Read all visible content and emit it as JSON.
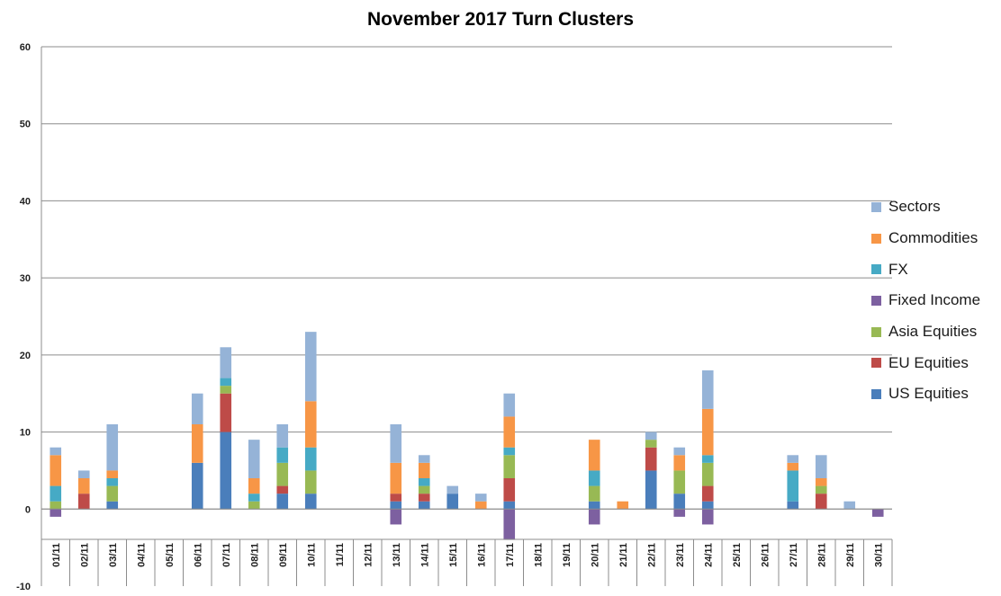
{
  "chart_data": {
    "type": "bar",
    "stacked": true,
    "title": "November 2017 Turn Clusters",
    "xlabel": "",
    "ylabel": "",
    "ylim": [
      -10,
      60
    ],
    "yticks": [
      -10,
      0,
      10,
      20,
      30,
      40,
      50,
      60
    ],
    "grid": true,
    "legend_position": "right",
    "categories": [
      "01/11",
      "02/11",
      "03/11",
      "04/11",
      "05/11",
      "06/11",
      "07/11",
      "08/11",
      "09/11",
      "10/11",
      "11/11",
      "12/11",
      "13/11",
      "14/11",
      "15/11",
      "16/11",
      "17/11",
      "18/11",
      "19/11",
      "20/11",
      "21/11",
      "22/11",
      "23/11",
      "24/11",
      "25/11",
      "26/11",
      "27/11",
      "28/11",
      "29/11",
      "30/11"
    ],
    "series": [
      {
        "name": "US Equities",
        "color": "#4a7ebb",
        "values": [
          0,
          0,
          1,
          0,
          0,
          6,
          10,
          0,
          2,
          2,
          0,
          0,
          1,
          1,
          2,
          0,
          1,
          0,
          0,
          1,
          0,
          5,
          2,
          1,
          0,
          0,
          1,
          0,
          0,
          0
        ]
      },
      {
        "name": "EU Equities",
        "color": "#be4b48",
        "values": [
          0,
          2,
          0,
          0,
          0,
          0,
          5,
          0,
          1,
          0,
          0,
          0,
          1,
          1,
          0,
          0,
          3,
          0,
          0,
          0,
          0,
          3,
          0,
          2,
          0,
          0,
          0,
          2,
          0,
          0
        ]
      },
      {
        "name": "Asia Equities",
        "color": "#98b954",
        "values": [
          1,
          0,
          2,
          0,
          0,
          0,
          1,
          1,
          3,
          3,
          0,
          0,
          0,
          1,
          0,
          0,
          3,
          0,
          0,
          2,
          0,
          1,
          3,
          3,
          0,
          0,
          0,
          1,
          0,
          0
        ]
      },
      {
        "name": "Fixed Income",
        "color": "#7d60a0",
        "values": [
          -1,
          0,
          0,
          0,
          0,
          0,
          0,
          0,
          0,
          0,
          0,
          0,
          -2,
          0,
          0,
          0,
          -4,
          0,
          0,
          -2,
          0,
          0,
          -1,
          -2,
          0,
          0,
          0,
          0,
          0,
          -1
        ]
      },
      {
        "name": "FX",
        "color": "#46aac5",
        "values": [
          2,
          0,
          1,
          0,
          0,
          0,
          1,
          1,
          2,
          3,
          0,
          0,
          0,
          1,
          0,
          0,
          1,
          0,
          0,
          2,
          0,
          0,
          0,
          1,
          0,
          0,
          4,
          0,
          0,
          0
        ]
      },
      {
        "name": "Commodities",
        "color": "#f79646",
        "values": [
          4,
          2,
          1,
          0,
          0,
          5,
          0,
          2,
          0,
          6,
          0,
          0,
          4,
          2,
          0,
          1,
          4,
          0,
          0,
          4,
          1,
          0,
          2,
          6,
          0,
          0,
          1,
          1,
          0,
          0
        ]
      },
      {
        "name": "Sectors",
        "color": "#95b3d7",
        "values": [
          1,
          1,
          6,
          0,
          0,
          4,
          4,
          5,
          3,
          9,
          0,
          0,
          5,
          1,
          1,
          1,
          3,
          0,
          0,
          0,
          0,
          1,
          1,
          5,
          0,
          0,
          1,
          3,
          1,
          0
        ]
      }
    ]
  }
}
